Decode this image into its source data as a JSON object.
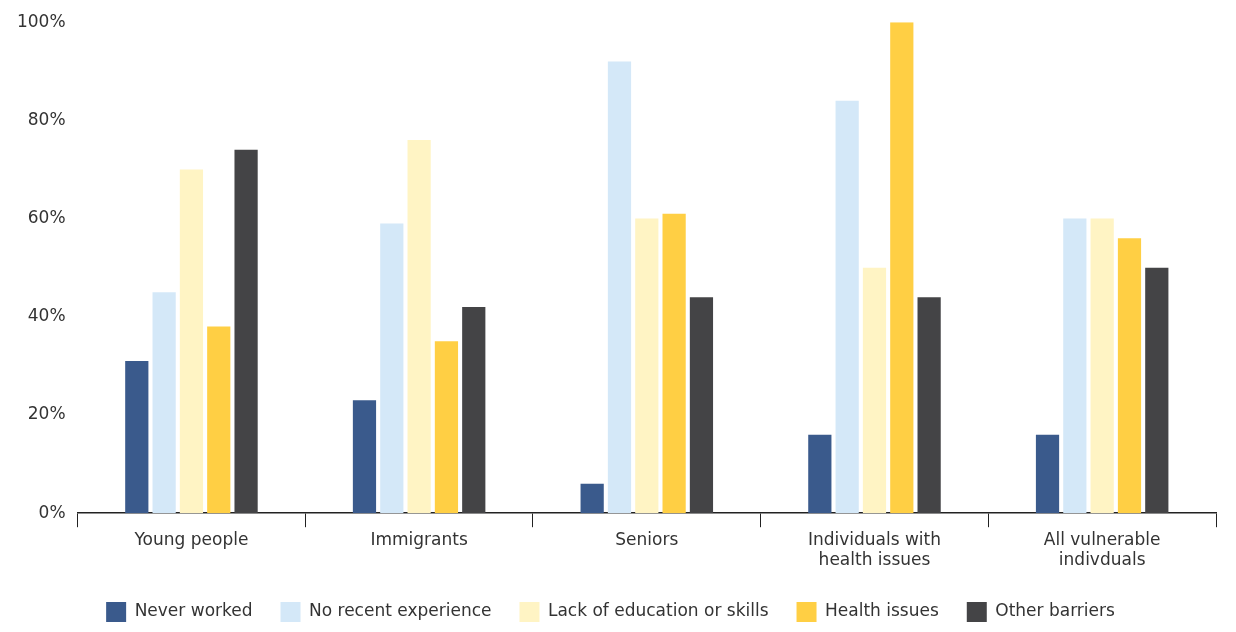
{
  "chart_data": {
    "type": "bar",
    "categories": [
      "Young people",
      "Immigrants",
      "Seniors",
      "Individuals with health issues",
      "All vulnerable indivduals"
    ],
    "series": [
      {
        "name": "Never worked",
        "color": "#3a5a8c",
        "values": [
          31,
          23,
          6,
          16,
          16
        ]
      },
      {
        "name": "No recent experience",
        "color": "#d4e8f8",
        "values": [
          45,
          59,
          92,
          84,
          60
        ]
      },
      {
        "name": "Lack of education or skills",
        "color": "#fff4c4",
        "values": [
          70,
          76,
          60,
          50,
          60
        ]
      },
      {
        "name": "Health issues",
        "color": "#ffcf44",
        "values": [
          38,
          35,
          61,
          100,
          56
        ]
      },
      {
        "name": "Other barriers",
        "color": "#444446",
        "values": [
          74,
          42,
          44,
          44,
          50
        ]
      }
    ],
    "ylim": [
      0,
      100
    ],
    "yticks": [
      {
        "value": 0,
        "label": "0%"
      },
      {
        "value": 20,
        "label": "20%"
      },
      {
        "value": 40,
        "label": "40%"
      },
      {
        "value": 60,
        "label": "60%"
      },
      {
        "value": 80,
        "label": "80%"
      },
      {
        "value": 100,
        "label": "100%"
      }
    ],
    "grid": false,
    "legend": "bottom"
  }
}
